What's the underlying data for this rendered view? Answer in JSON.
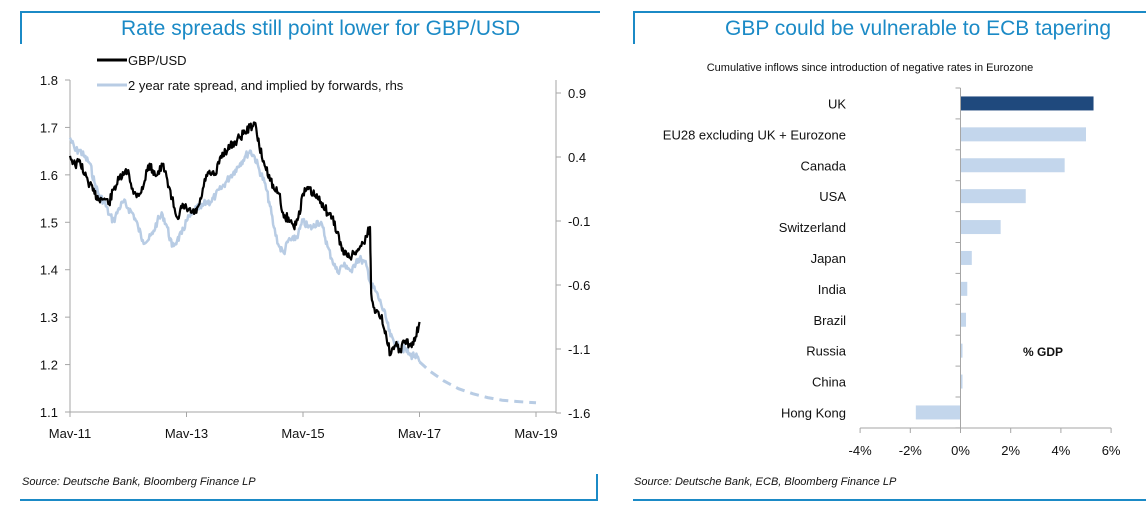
{
  "left_panel": {
    "title": "Rate spreads still point lower for GBP/USD",
    "source": "Source: Deutsche Bank, Bloomberg Finance LP"
  },
  "right_panel": {
    "title": "GBP could be vulnerable to ECB tapering",
    "source": "Source: Deutsche Bank, ECB, Bloomberg Finance LP"
  },
  "colors": {
    "frame": "#1b8ac6",
    "gbpusd": "#000000",
    "spread": "#b8cce4",
    "uk_bar": "#1f497d",
    "other_bars": "#c3d6ec",
    "axis": "#a6a6a6"
  },
  "chart_data": [
    {
      "type": "line",
      "title": "Rate spreads still point lower for GBP/USD",
      "xlabel": "",
      "ylabel": "GBP/USD",
      "y2label": "2 year rate spread (rhs)",
      "x_ticks": [
        "Mav-11",
        "Mav-13",
        "Mav-15",
        "Mav-17",
        "Mav-19"
      ],
      "x_range_years": [
        2011.33,
        2019.33
      ],
      "ylim": [
        1.1,
        1.8
      ],
      "y_ticks": [
        "1.1",
        "1.2",
        "1.3",
        "1.4",
        "1.5",
        "1.6",
        "1.7",
        "1.8"
      ],
      "y2lim": [
        -1.6,
        0.9
      ],
      "y2_ticks": [
        "-1.6",
        "-1.1",
        "-0.6",
        "-0.1",
        "0.4",
        "0.9"
      ],
      "legend_position": "top-left",
      "series": [
        {
          "name": "GBP/USD",
          "axis": "left",
          "style": "solid",
          "x": [
            2011.33,
            2011.42,
            2011.5,
            2011.58,
            2011.67,
            2011.75,
            2011.83,
            2011.92,
            2012.0,
            2012.08,
            2012.17,
            2012.25,
            2012.33,
            2012.42,
            2012.5,
            2012.58,
            2012.67,
            2012.75,
            2012.83,
            2012.92,
            2013.0,
            2013.08,
            2013.17,
            2013.25,
            2013.33,
            2013.42,
            2013.5,
            2013.58,
            2013.67,
            2013.75,
            2013.83,
            2013.92,
            2014.0,
            2014.08,
            2014.17,
            2014.25,
            2014.33,
            2014.42,
            2014.5,
            2014.58,
            2014.67,
            2014.75,
            2014.83,
            2014.92,
            2015.0,
            2015.08,
            2015.17,
            2015.25,
            2015.33,
            2015.42,
            2015.5,
            2015.58,
            2015.67,
            2015.75,
            2015.83,
            2015.92,
            2016.0,
            2016.08,
            2016.17,
            2016.25,
            2016.33,
            2016.42,
            2016.48,
            2016.5,
            2016.58,
            2016.67,
            2016.75,
            2016.83,
            2016.92,
            2017.0,
            2017.08,
            2017.17,
            2017.25,
            2017.33
          ],
          "values": [
            1.64,
            1.62,
            1.63,
            1.6,
            1.58,
            1.56,
            1.55,
            1.55,
            1.54,
            1.57,
            1.59,
            1.6,
            1.61,
            1.56,
            1.56,
            1.57,
            1.62,
            1.61,
            1.6,
            1.62,
            1.59,
            1.55,
            1.51,
            1.53,
            1.53,
            1.52,
            1.52,
            1.55,
            1.6,
            1.6,
            1.6,
            1.64,
            1.65,
            1.66,
            1.67,
            1.68,
            1.69,
            1.7,
            1.71,
            1.66,
            1.62,
            1.6,
            1.57,
            1.56,
            1.51,
            1.51,
            1.49,
            1.51,
            1.56,
            1.57,
            1.56,
            1.55,
            1.54,
            1.52,
            1.51,
            1.48,
            1.44,
            1.43,
            1.43,
            1.44,
            1.45,
            1.47,
            1.49,
            1.35,
            1.31,
            1.3,
            1.27,
            1.22,
            1.24,
            1.23,
            1.25,
            1.24,
            1.25,
            1.29
          ]
        },
        {
          "name": "2 year rate spread, and implied by forwards, rhs",
          "axis": "right",
          "style": "solid",
          "x": [
            2011.33,
            2011.42,
            2011.5,
            2011.58,
            2011.67,
            2011.75,
            2011.83,
            2011.92,
            2012.0,
            2012.08,
            2012.17,
            2012.25,
            2012.33,
            2012.42,
            2012.5,
            2012.58,
            2012.67,
            2012.75,
            2012.83,
            2012.92,
            2013.0,
            2013.08,
            2013.17,
            2013.25,
            2013.33,
            2013.42,
            2013.5,
            2013.58,
            2013.67,
            2013.75,
            2013.83,
            2013.92,
            2014.0,
            2014.08,
            2014.17,
            2014.25,
            2014.33,
            2014.42,
            2014.5,
            2014.58,
            2014.67,
            2014.75,
            2014.83,
            2014.92,
            2015.0,
            2015.08,
            2015.17,
            2015.25,
            2015.33,
            2015.42,
            2015.5,
            2015.58,
            2015.67,
            2015.75,
            2015.83,
            2015.92,
            2016.0,
            2016.08,
            2016.17,
            2016.25,
            2016.33,
            2016.42,
            2016.5,
            2016.58,
            2016.67,
            2016.75,
            2016.83,
            2016.92,
            2017.0,
            2017.08,
            2017.17,
            2017.25,
            2017.33
          ],
          "values": [
            0.55,
            0.45,
            0.45,
            0.4,
            0.35,
            0.2,
            0.1,
            0.05,
            -0.05,
            -0.1,
            0.0,
            0.05,
            0.0,
            -0.05,
            -0.15,
            -0.25,
            -0.25,
            -0.2,
            -0.1,
            -0.05,
            -0.15,
            -0.3,
            -0.25,
            -0.2,
            -0.1,
            -0.05,
            0.0,
            0.0,
            0.05,
            0.05,
            0.1,
            0.15,
            0.2,
            0.25,
            0.3,
            0.35,
            0.4,
            0.45,
            0.4,
            0.3,
            0.2,
            0.05,
            -0.15,
            -0.3,
            -0.35,
            -0.25,
            -0.25,
            -0.2,
            -0.1,
            -0.15,
            -0.15,
            -0.1,
            -0.15,
            -0.3,
            -0.4,
            -0.5,
            -0.45,
            -0.45,
            -0.5,
            -0.4,
            -0.4,
            -0.45,
            -0.6,
            -0.65,
            -0.75,
            -0.85,
            -1.0,
            -1.05,
            -1.1,
            -1.1,
            -1.15,
            -1.15,
            -1.2
          ]
        },
        {
          "name": "2 year rate spread implied by forwards (projection)",
          "axis": "right",
          "style": "dashed",
          "x": [
            2017.33,
            2017.5,
            2017.75,
            2018.0,
            2018.25,
            2018.5,
            2018.75,
            2019.0,
            2019.33
          ],
          "values": [
            -1.2,
            -1.27,
            -1.35,
            -1.41,
            -1.45,
            -1.48,
            -1.5,
            -1.51,
            -1.52
          ]
        }
      ]
    },
    {
      "type": "bar",
      "orientation": "horizontal",
      "title": "GBP could be vulnerable to ECB tapering",
      "subtitle": "Cumulative inflows since introduction of negative rates in Eurozone",
      "annotation": "% GDP",
      "xlabel": "",
      "ylabel": "",
      "xlim": [
        -4,
        6
      ],
      "x_ticks": [
        "-4%",
        "-2%",
        "0%",
        "2%",
        "4%",
        "6%"
      ],
      "grid": false,
      "categories": [
        "UK",
        "EU28 excluding UK + Eurozone",
        "Canada",
        "USA",
        "Switzerland",
        "Japan",
        "India",
        "Brazil",
        "Russia",
        "China",
        "Hong Kong"
      ],
      "values": [
        5.3,
        5.0,
        4.15,
        2.6,
        1.6,
        0.45,
        0.27,
        0.22,
        0.08,
        0.08,
        -1.78
      ],
      "highlight": "UK"
    }
  ]
}
